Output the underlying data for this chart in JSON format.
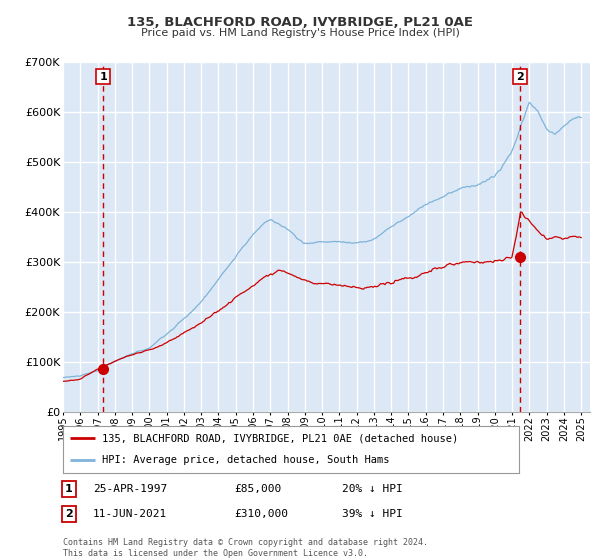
{
  "title1": "135, BLACHFORD ROAD, IVYBRIDGE, PL21 0AE",
  "title2": "Price paid vs. HM Land Registry's House Price Index (HPI)",
  "ylim": [
    0,
    700000
  ],
  "yticks": [
    0,
    100000,
    200000,
    300000,
    400000,
    500000,
    600000,
    700000
  ],
  "ytick_labels": [
    "£0",
    "£100K",
    "£200K",
    "£300K",
    "£400K",
    "£500K",
    "£600K",
    "£700K"
  ],
  "xlim_start": 1995.0,
  "xlim_end": 2025.5,
  "plot_bg_color": "#dce8f5",
  "grid_color": "#ffffff",
  "hpi_color": "#7fb3d9",
  "price_color": "#cc0000",
  "sale1_x": 1997.32,
  "sale1_y": 85000,
  "sale1_label": "1",
  "sale1_date": "25-APR-1997",
  "sale1_price": "£85,000",
  "sale1_hpi": "20% ↓ HPI",
  "sale2_x": 2021.45,
  "sale2_y": 310000,
  "sale2_label": "2",
  "sale2_date": "11-JUN-2021",
  "sale2_price": "£310,000",
  "sale2_hpi": "39% ↓ HPI",
  "legend_label1": "135, BLACHFORD ROAD, IVYBRIDGE, PL21 0AE (detached house)",
  "legend_label2": "HPI: Average price, detached house, South Hams",
  "footnote": "Contains HM Land Registry data © Crown copyright and database right 2024.\nThis data is licensed under the Open Government Licence v3.0."
}
